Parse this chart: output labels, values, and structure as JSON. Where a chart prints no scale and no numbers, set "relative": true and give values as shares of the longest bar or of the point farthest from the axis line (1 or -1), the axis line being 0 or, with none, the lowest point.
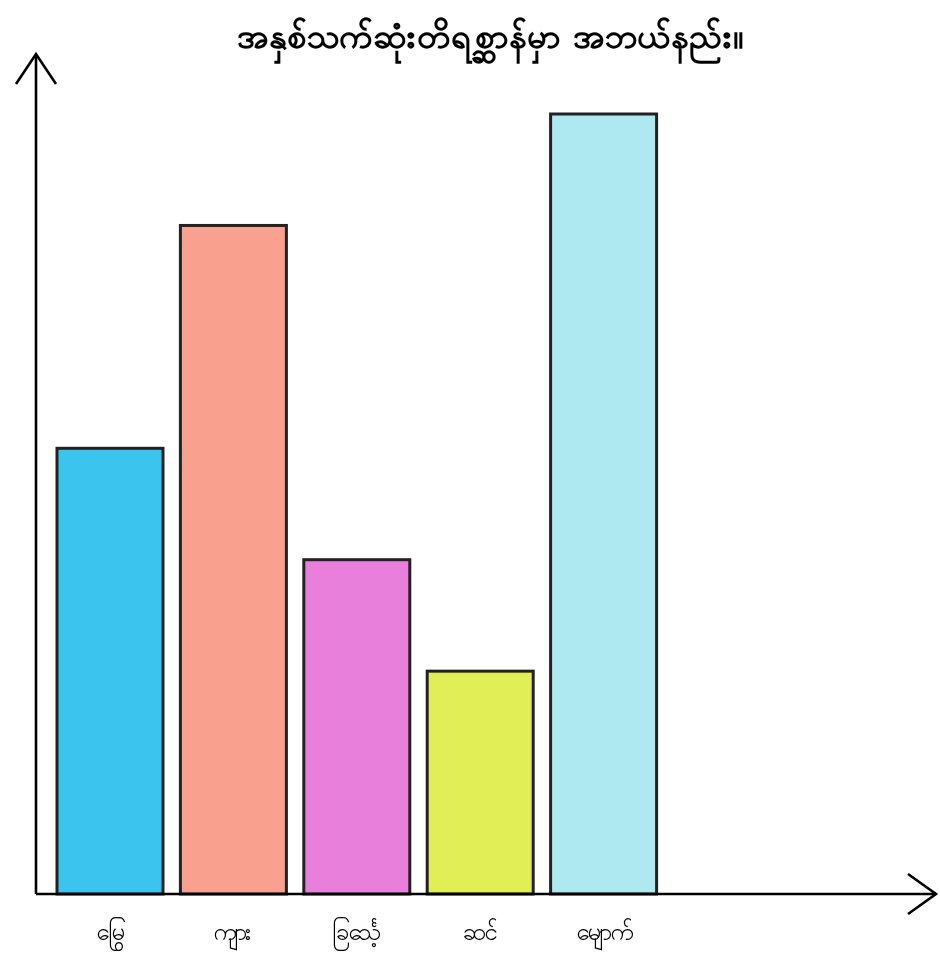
{
  "chart_data": {
    "type": "bar",
    "title": "အနှစ်သက်ဆုံးတိရစ္ဆာန်မှာ အဘယ်နည်း။",
    "relative": true,
    "categories": [
      "မြွေ",
      "ကျား",
      "ခြင်္သေ့",
      "ဆင်",
      "မျောက်"
    ],
    "values": [
      0.5714,
      0.8571,
      0.4286,
      0.2857,
      1
    ],
    "colors": [
      "#3bc4ee",
      "#f9a08e",
      "#e87fdb",
      "#e2ee55",
      "#aee8f0"
    ]
  }
}
